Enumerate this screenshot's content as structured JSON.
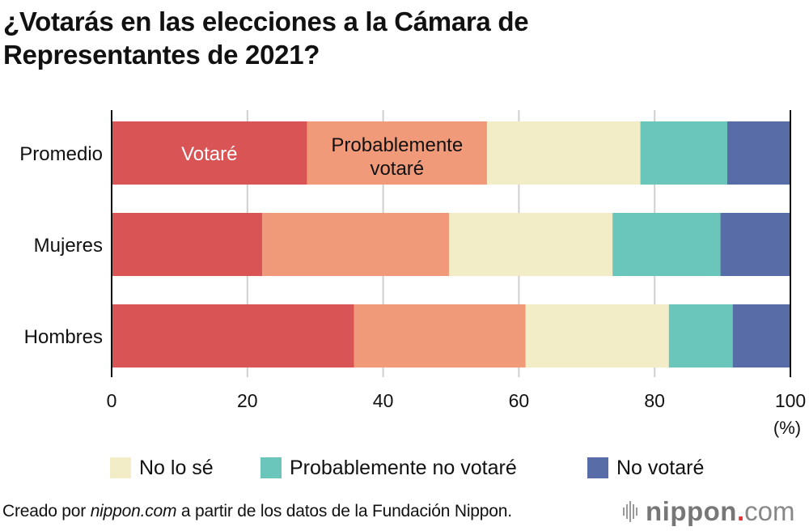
{
  "chart_data": {
    "type": "bar",
    "orientation": "horizontal",
    "stacked": true,
    "title": "¿Votarás en las elecciones a la Cámara de Representantes de 2021?",
    "categories": [
      "Promedio",
      "Mujeres",
      "Hombres"
    ],
    "series": [
      {
        "name": "Votaré",
        "color": "#d95455",
        "values": [
          28.8,
          22.2,
          35.7
        ]
      },
      {
        "name": "Probablemente votaré",
        "color": "#f19a7a",
        "values": [
          26.5,
          27.5,
          25.3
        ]
      },
      {
        "name": "No lo sé",
        "color": "#f2edc6",
        "values": [
          22.6,
          24.1,
          21.1
        ]
      },
      {
        "name": "Probablemente no votaré",
        "color": "#6ac6ba",
        "values": [
          12.8,
          15.9,
          9.4
        ]
      },
      {
        "name": "No votaré",
        "color": "#586ca8",
        "values": [
          9.3,
          10.3,
          8.5
        ]
      }
    ],
    "xlim": [
      0,
      100
    ],
    "xticks": [
      0,
      20,
      40,
      60,
      80,
      100
    ],
    "xlabel": "(%)",
    "ylabel": "",
    "grid": true,
    "inline_labels": {
      "Votaré": "Votaré",
      "Probablemente votaré": [
        "Probablemente",
        "votaré"
      ]
    },
    "legend_entries": [
      "No lo sé",
      "Probablemente no votaré",
      "No votaré"
    ],
    "legend_placement": "bottom"
  },
  "title_lines": [
    "¿Votarás en las elecciones a la Cámara de",
    "Representantes de 2021?"
  ],
  "axis_unit": "(%)",
  "footer": {
    "prefix": "Creado por ",
    "site": "nippon.com",
    "suffix": " a partir de los datos de la Fundación Nippon."
  },
  "logo": {
    "brand": "nippon",
    "dot": ".",
    "tld": "com"
  }
}
